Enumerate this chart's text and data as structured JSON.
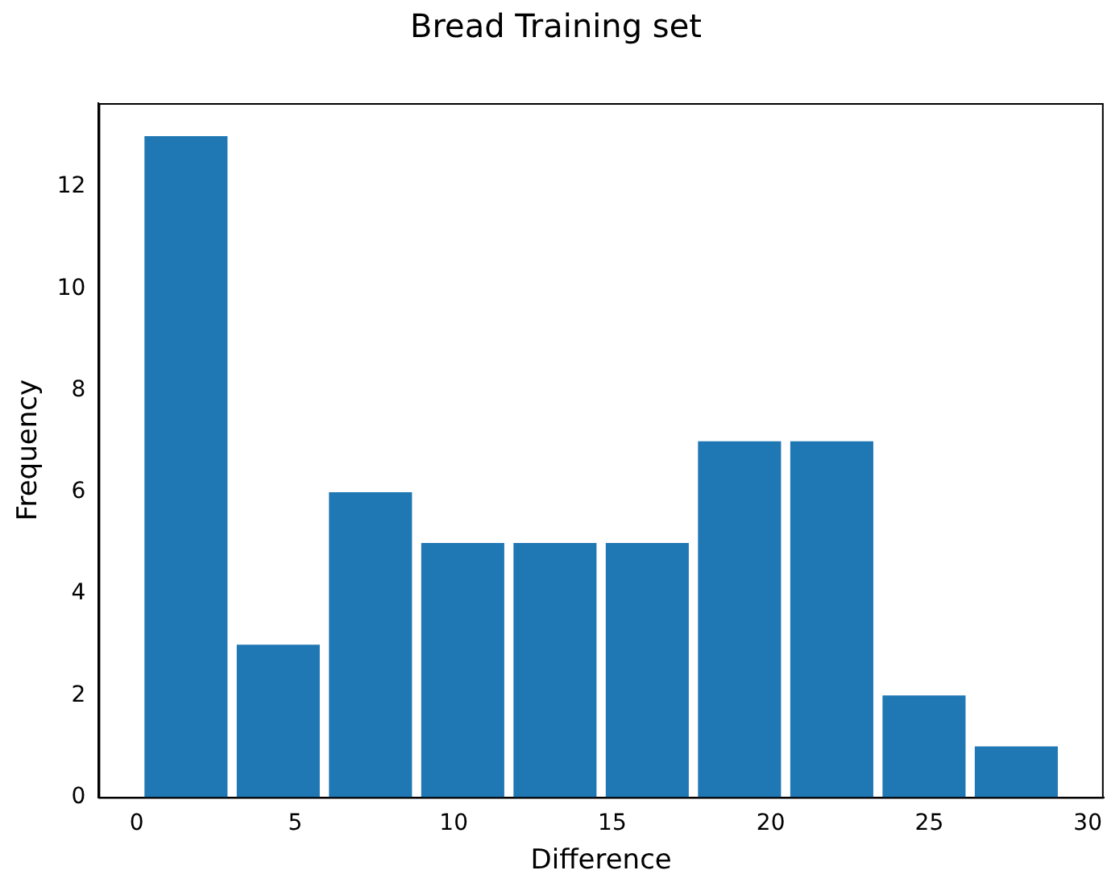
{
  "chart_data": {
    "type": "histogram",
    "title": "Bread Training set",
    "xlabel": "Difference",
    "ylabel": "Frequency",
    "bins": [
      0.1,
      3.01,
      5.92,
      8.83,
      11.74,
      14.65,
      17.56,
      20.47,
      23.38,
      26.29,
      29.2
    ],
    "values": [
      13,
      3,
      6,
      5,
      5,
      5,
      7,
      7,
      2,
      1
    ],
    "color": "#1f77b4",
    "xlim": [
      -1.2,
      30.5
    ],
    "xticks": [
      0,
      5,
      10,
      15,
      20,
      25,
      30
    ],
    "ylim": [
      0,
      13.65
    ],
    "yticks": [
      0,
      2,
      4,
      6,
      8,
      10,
      12
    ]
  }
}
